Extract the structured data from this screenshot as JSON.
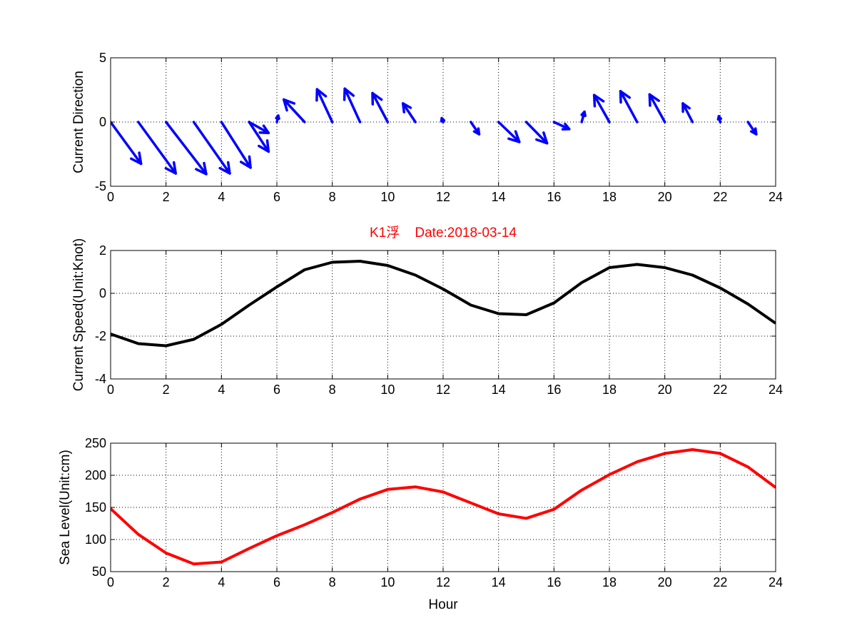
{
  "chart_data": [
    {
      "type": "quiver",
      "ylabel": "Current Direction",
      "xlim": [
        0,
        24
      ],
      "ylim": [
        -5,
        5
      ],
      "xticks": [
        "0",
        "2",
        "4",
        "6",
        "8",
        "10",
        "12",
        "14",
        "16",
        "18",
        "20",
        "22",
        "24"
      ],
      "yticks": [
        "5",
        "0",
        "-5"
      ],
      "grid": true,
      "color": "#0000ff",
      "vectors": [
        {
          "x": 0,
          "u": 1.1,
          "v": -3.25
        },
        {
          "x": 1,
          "u": 1.35,
          "v": -4.0
        },
        {
          "x": 2,
          "u": 1.45,
          "v": -4.05
        },
        {
          "x": 3,
          "u": 1.3,
          "v": -4.0
        },
        {
          "x": 4,
          "u": 1.05,
          "v": -3.55
        },
        {
          "x": 5,
          "u": 0.7,
          "v": -2.3
        },
        {
          "x": 5,
          "u": 0.7,
          "v": -0.85
        },
        {
          "x": 6,
          "u": 0.05,
          "v": 0.5
        },
        {
          "x": 7,
          "u": -0.75,
          "v": 1.75
        },
        {
          "x": 8,
          "u": -0.55,
          "v": 2.55
        },
        {
          "x": 9,
          "u": -0.55,
          "v": 2.6
        },
        {
          "x": 10,
          "u": -0.55,
          "v": 2.25
        },
        {
          "x": 11,
          "u": -0.45,
          "v": 1.45
        },
        {
          "x": 12,
          "u": -0.05,
          "v": 0.3
        },
        {
          "x": 13,
          "u": 0.3,
          "v": -0.95
        },
        {
          "x": 14,
          "u": 0.75,
          "v": -1.55
        },
        {
          "x": 15,
          "u": 0.75,
          "v": -1.65
        },
        {
          "x": 16,
          "u": 0.55,
          "v": -0.55
        },
        {
          "x": 17,
          "u": 0.1,
          "v": 0.8
        },
        {
          "x": 18,
          "u": -0.55,
          "v": 2.1
        },
        {
          "x": 19,
          "u": -0.6,
          "v": 2.4
        },
        {
          "x": 20,
          "u": -0.55,
          "v": 2.15
        },
        {
          "x": 21,
          "u": -0.35,
          "v": 1.45
        },
        {
          "x": 22,
          "u": -0.05,
          "v": 0.45
        },
        {
          "x": 23,
          "u": 0.3,
          "v": -0.95
        }
      ]
    },
    {
      "type": "line",
      "title": "K1浮    Date:2018-03-14",
      "ylabel": "Current Speed(Unit:Knot)",
      "xlim": [
        0,
        24
      ],
      "ylim": [
        -4,
        2
      ],
      "xticks": [
        "0",
        "2",
        "4",
        "6",
        "8",
        "10",
        "12",
        "14",
        "16",
        "18",
        "20",
        "22",
        "24"
      ],
      "yticks": [
        "2",
        "0",
        "-2",
        "-4"
      ],
      "grid": true,
      "color": "#000000",
      "x": [
        0,
        1,
        2,
        3,
        4,
        5,
        6,
        7,
        8,
        9,
        10,
        11,
        12,
        13,
        14,
        15,
        16,
        17,
        18,
        19,
        20,
        21,
        22,
        23,
        24
      ],
      "y": [
        -1.9,
        -2.35,
        -2.45,
        -2.15,
        -1.45,
        -0.55,
        0.3,
        1.1,
        1.45,
        1.5,
        1.3,
        0.85,
        0.2,
        -0.55,
        -0.95,
        -1.0,
        -0.45,
        0.5,
        1.2,
        1.35,
        1.2,
        0.85,
        0.25,
        -0.5,
        -1.4
      ]
    },
    {
      "type": "line",
      "xlabel": "Hour",
      "ylabel": "Sea Level(Unit:cm)",
      "xlim": [
        0,
        24
      ],
      "ylim": [
        50,
        250
      ],
      "xticks": [
        "0",
        "2",
        "4",
        "6",
        "8",
        "10",
        "12",
        "14",
        "16",
        "18",
        "20",
        "22",
        "24"
      ],
      "yticks": [
        "250",
        "200",
        "150",
        "100",
        "50"
      ],
      "grid": true,
      "color": "#ff0000",
      "x": [
        0,
        1,
        2,
        3,
        4,
        5,
        6,
        7,
        8,
        9,
        10,
        11,
        12,
        13,
        14,
        15,
        16,
        17,
        18,
        19,
        20,
        21,
        22,
        23,
        24
      ],
      "y": [
        148,
        108,
        79,
        62,
        65,
        86,
        106,
        123,
        142,
        163,
        178,
        182,
        174,
        157,
        140,
        133,
        147,
        177,
        201,
        221,
        234,
        240,
        234,
        213,
        181
      ]
    }
  ]
}
